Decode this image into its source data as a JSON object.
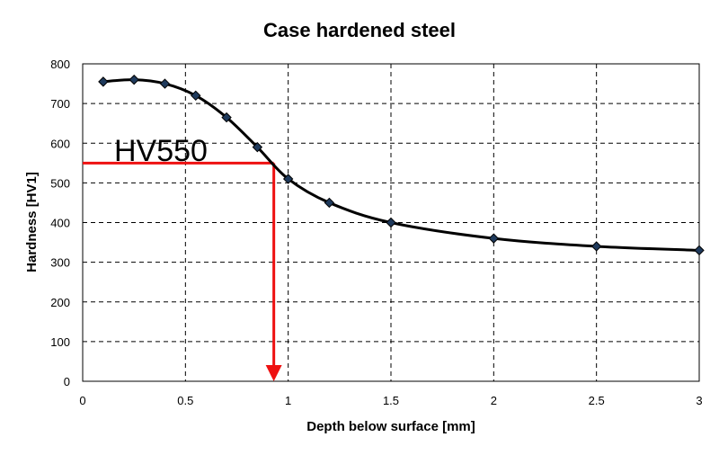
{
  "chart_data": {
    "type": "line",
    "title": "Case hardened steel",
    "xlabel": "Depth below surface [mm]",
    "ylabel": "Hardness [HV1]",
    "xlim": [
      0,
      3
    ],
    "ylim": [
      0,
      800
    ],
    "x_ticks": [
      0,
      0.5,
      1,
      1.5,
      2,
      2.5,
      3
    ],
    "x_tick_labels": [
      "0",
      "0.5",
      "1",
      "1.5",
      "2",
      "2.5",
      "3"
    ],
    "y_ticks": [
      0,
      100,
      200,
      300,
      400,
      500,
      600,
      700,
      800
    ],
    "y_tick_labels": [
      "0",
      "100",
      "200",
      "300",
      "400",
      "500",
      "600",
      "700",
      "800"
    ],
    "grid": true,
    "series": [
      {
        "name": "Hardness",
        "x": [
          0.1,
          0.25,
          0.4,
          0.55,
          0.7,
          0.85,
          1.0,
          1.2,
          1.5,
          2.0,
          2.5,
          3.0
        ],
        "y": [
          755,
          760,
          750,
          720,
          665,
          590,
          510,
          450,
          400,
          360,
          340,
          330
        ],
        "line_color": "#000000",
        "marker_color": "#1f3a5c"
      }
    ],
    "annotation": {
      "text": "HV550",
      "threshold_y": 550,
      "intersect_x": 0.93,
      "color": "#ee1111"
    }
  }
}
